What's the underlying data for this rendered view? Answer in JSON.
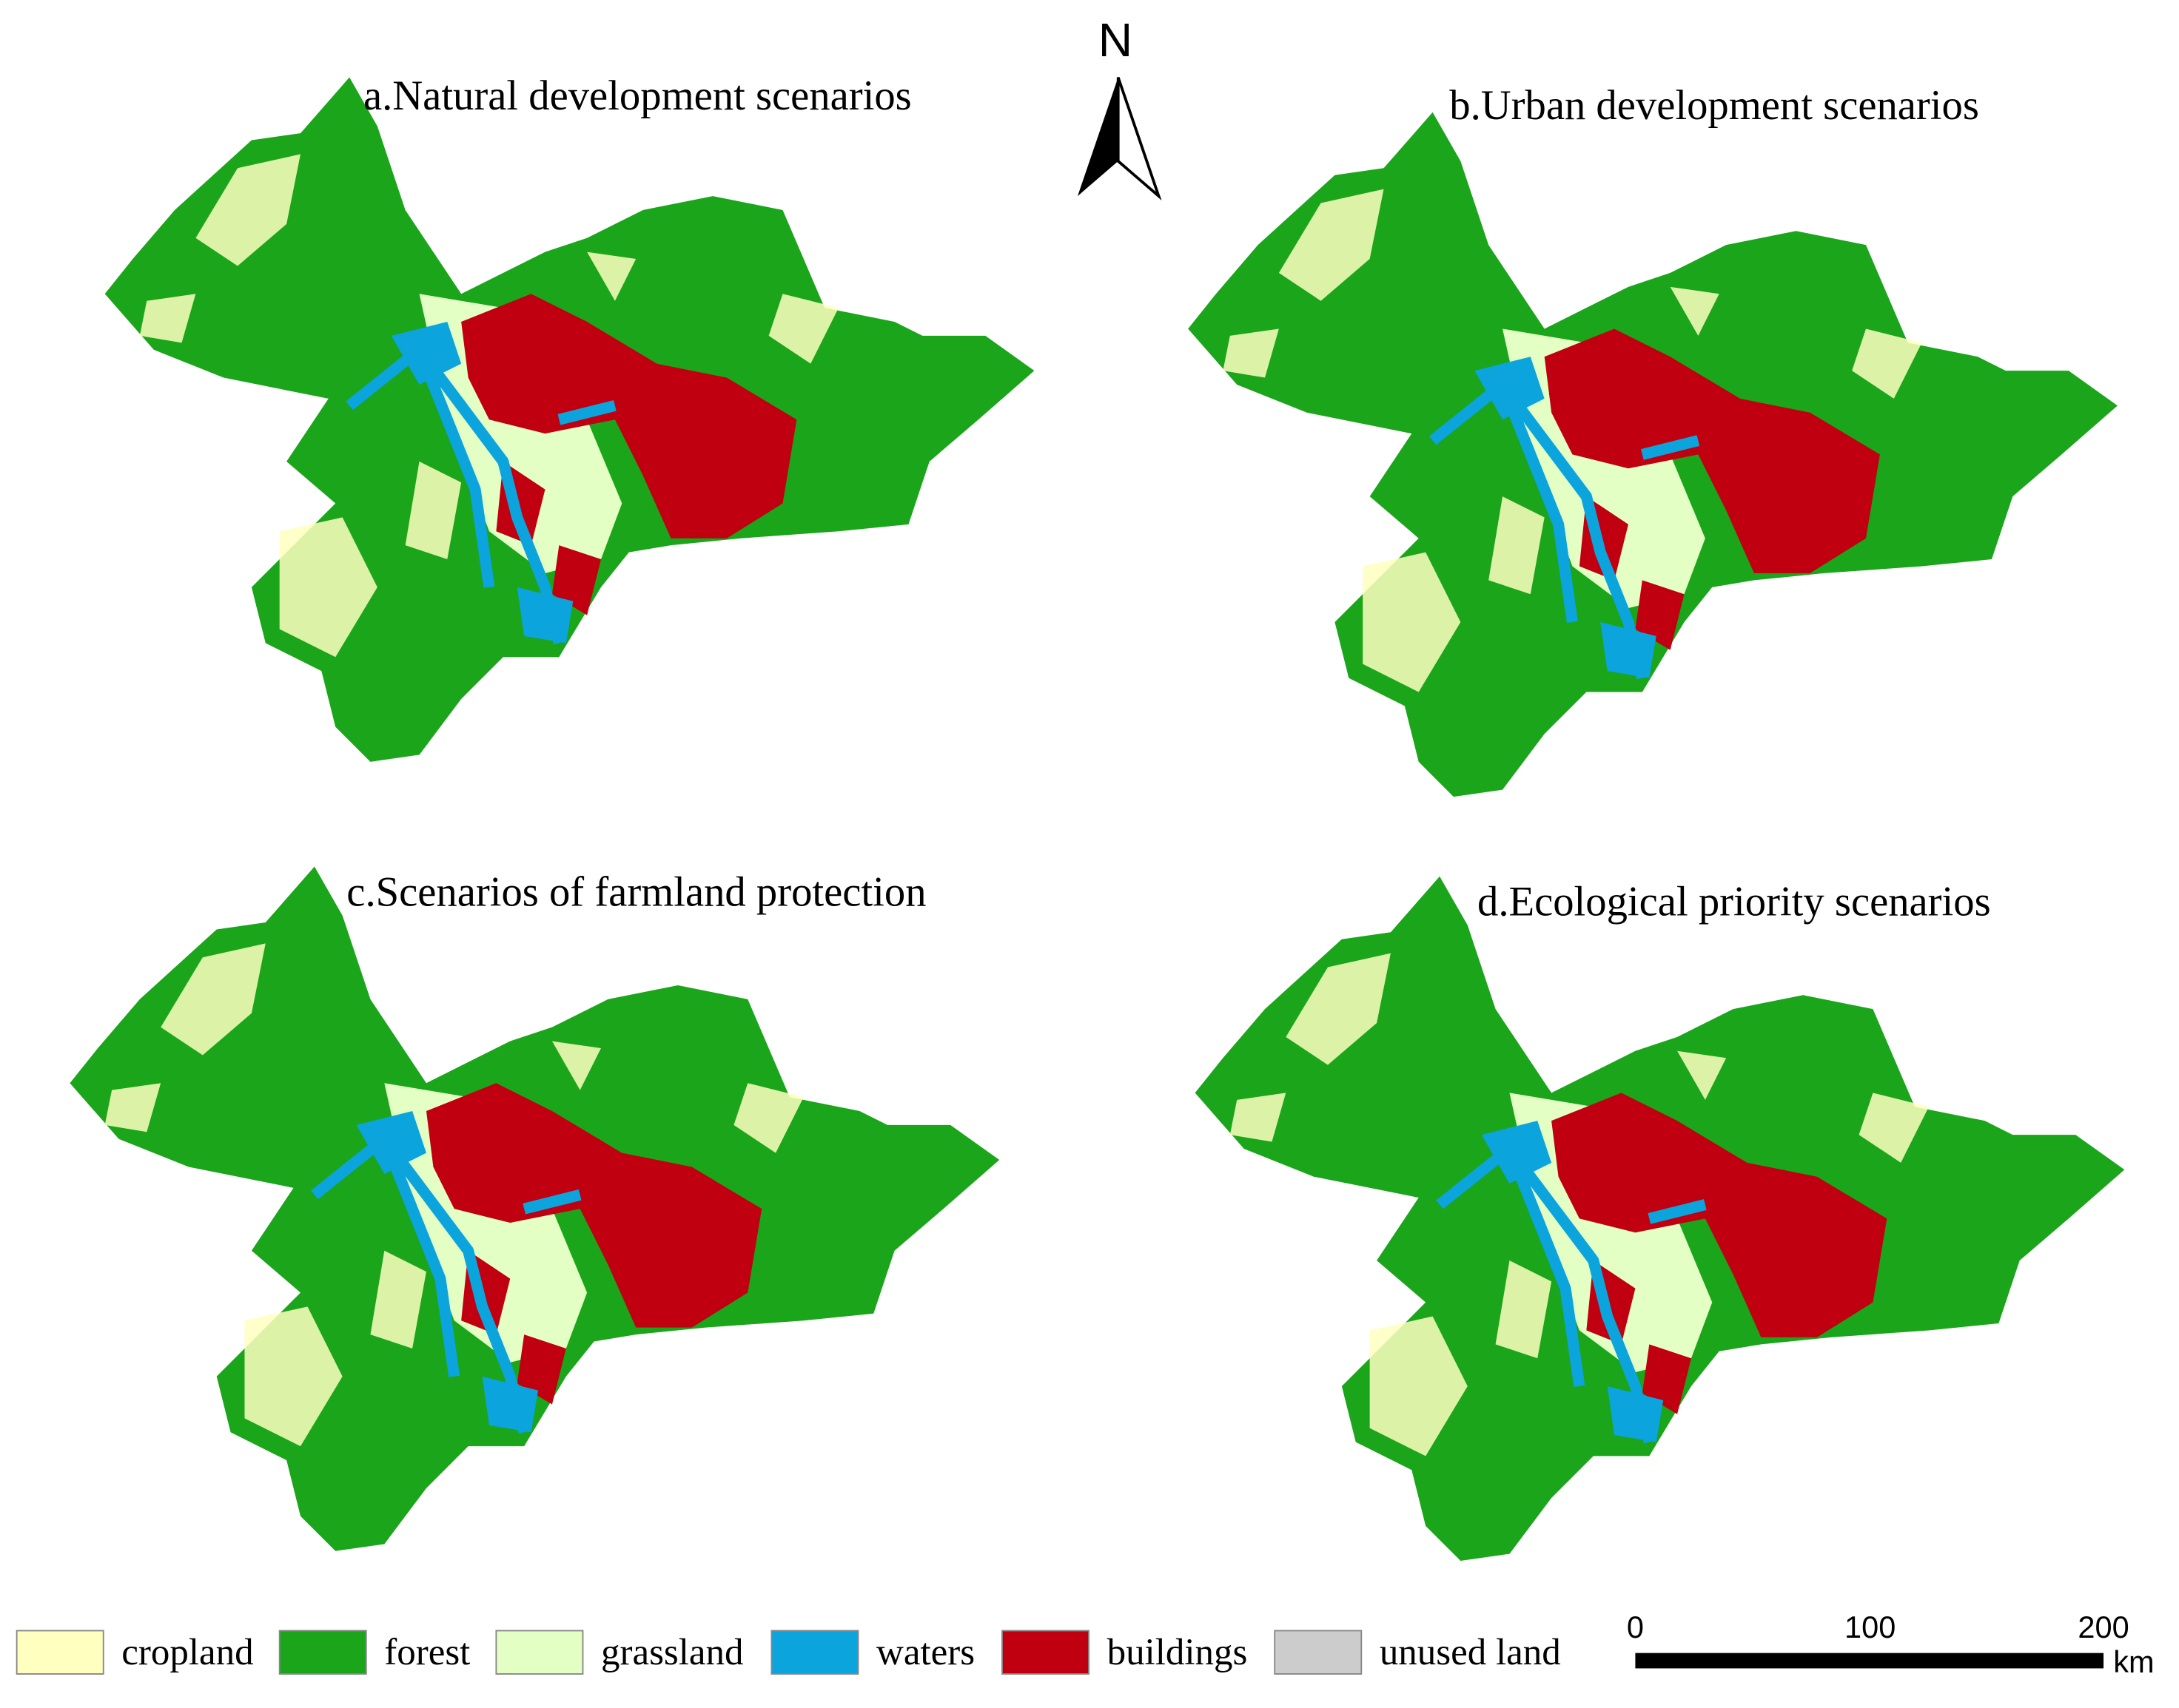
{
  "panels": [
    {
      "title": "a.Natural development scenarios"
    },
    {
      "title": "b.Urban development scenarios"
    },
    {
      "title": "c.Scenarios of farmland protection"
    },
    {
      "title": "d.Ecological priority scenarios"
    }
  ],
  "north_label": "N",
  "legend": [
    {
      "label": "cropland",
      "color": "#ffffc0"
    },
    {
      "label": "forest",
      "color": "#1aa51a"
    },
    {
      "label": "grassland",
      "color": "#e3ffc4"
    },
    {
      "label": "waters",
      "color": "#0ca4dc"
    },
    {
      "label": "buildings",
      "color": "#c00010"
    },
    {
      "label": "unused land",
      "color": "#cccccc"
    }
  ],
  "scale_bar": {
    "labels": [
      "0",
      "100",
      "200"
    ],
    "unit": "km"
  }
}
